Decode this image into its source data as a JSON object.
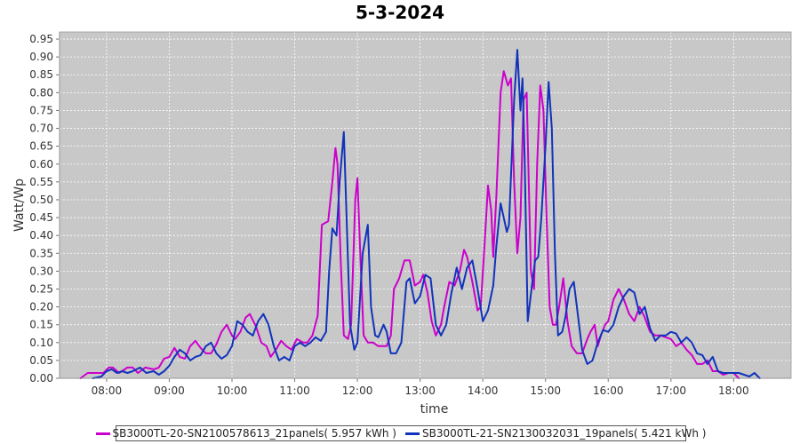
{
  "chart_data": {
    "type": "line",
    "title": "5-3-2024",
    "xlabel": "time",
    "ylabel": "Watt/Wp",
    "x_ticks": [
      "08:00",
      "09:00",
      "10:00",
      "11:00",
      "12:00",
      "13:00",
      "14:00",
      "15:00",
      "16:00",
      "17:00",
      "18:00"
    ],
    "y_ticks": [
      "0.00",
      "0.05",
      "0.10",
      "0.15",
      "0.20",
      "0.25",
      "0.30",
      "0.35",
      "0.40",
      "0.45",
      "0.50",
      "0.55",
      "0.60",
      "0.65",
      "0.70",
      "0.75",
      "0.80",
      "0.85",
      "0.90",
      "0.95"
    ],
    "xlim": [
      "07:15",
      "18:55"
    ],
    "ylim": [
      0,
      0.97
    ],
    "grid": true,
    "legend_position": "bottom",
    "plot_background": "#c8c8c8",
    "series": [
      {
        "name": "SB3000TL-20-SN2100578613_21panels( 5.957 kWh )",
        "color": "#cc00cc",
        "points": [
          [
            "07:35",
            0.0
          ],
          [
            "07:42",
            0.015
          ],
          [
            "07:50",
            0.015
          ],
          [
            "07:57",
            0.015
          ],
          [
            "08:02",
            0.03
          ],
          [
            "08:06",
            0.03
          ],
          [
            "08:12",
            0.015
          ],
          [
            "08:20",
            0.03
          ],
          [
            "08:25",
            0.03
          ],
          [
            "08:30",
            0.015
          ],
          [
            "08:37",
            0.03
          ],
          [
            "08:45",
            0.025
          ],
          [
            "08:50",
            0.03
          ],
          [
            "08:55",
            0.055
          ],
          [
            "09:00",
            0.06
          ],
          [
            "09:05",
            0.085
          ],
          [
            "09:10",
            0.06
          ],
          [
            "09:15",
            0.055
          ],
          [
            "09:20",
            0.09
          ],
          [
            "09:25",
            0.105
          ],
          [
            "09:30",
            0.085
          ],
          [
            "09:35",
            0.07
          ],
          [
            "09:40",
            0.07
          ],
          [
            "09:45",
            0.095
          ],
          [
            "09:50",
            0.13
          ],
          [
            "09:55",
            0.15
          ],
          [
            "10:00",
            0.12
          ],
          [
            "10:03",
            0.11
          ],
          [
            "10:08",
            0.13
          ],
          [
            "10:13",
            0.17
          ],
          [
            "10:17",
            0.18
          ],
          [
            "10:23",
            0.145
          ],
          [
            "10:28",
            0.1
          ],
          [
            "10:33",
            0.09
          ],
          [
            "10:37",
            0.06
          ],
          [
            "10:42",
            0.08
          ],
          [
            "10:47",
            0.105
          ],
          [
            "10:52",
            0.09
          ],
          [
            "10:57",
            0.08
          ],
          [
            "11:02",
            0.11
          ],
          [
            "11:08",
            0.1
          ],
          [
            "11:12",
            0.1
          ],
          [
            "11:17",
            0.12
          ],
          [
            "11:22",
            0.175
          ],
          [
            "11:26",
            0.43
          ],
          [
            "11:32",
            0.44
          ],
          [
            "11:36",
            0.55
          ],
          [
            "11:39",
            0.645
          ],
          [
            "11:41",
            0.6
          ],
          [
            "11:44",
            0.33
          ],
          [
            "11:47",
            0.12
          ],
          [
            "11:51",
            0.11
          ],
          [
            "11:54",
            0.15
          ],
          [
            "11:58",
            0.5
          ],
          [
            "12:00",
            0.56
          ],
          [
            "12:03",
            0.33
          ],
          [
            "12:06",
            0.12
          ],
          [
            "12:10",
            0.1
          ],
          [
            "12:15",
            0.1
          ],
          [
            "12:20",
            0.09
          ],
          [
            "12:28",
            0.09
          ],
          [
            "12:32",
            0.12
          ],
          [
            "12:35",
            0.25
          ],
          [
            "12:40",
            0.28
          ],
          [
            "12:45",
            0.33
          ],
          [
            "12:50",
            0.33
          ],
          [
            "12:55",
            0.26
          ],
          [
            "13:00",
            0.27
          ],
          [
            "13:03",
            0.29
          ],
          [
            "13:07",
            0.24
          ],
          [
            "13:11",
            0.16
          ],
          [
            "13:15",
            0.12
          ],
          [
            "13:20",
            0.15
          ],
          [
            "13:23",
            0.2
          ],
          [
            "13:28",
            0.27
          ],
          [
            "13:33",
            0.26
          ],
          [
            "13:38",
            0.3
          ],
          [
            "13:42",
            0.36
          ],
          [
            "13:45",
            0.34
          ],
          [
            "13:50",
            0.27
          ],
          [
            "13:55",
            0.19
          ],
          [
            "13:58",
            0.2
          ],
          [
            "14:02",
            0.39
          ],
          [
            "14:05",
            0.54
          ],
          [
            "14:08",
            0.47
          ],
          [
            "14:10",
            0.34
          ],
          [
            "14:13",
            0.51
          ],
          [
            "14:17",
            0.8
          ],
          [
            "14:20",
            0.86
          ],
          [
            "14:24",
            0.82
          ],
          [
            "14:27",
            0.84
          ],
          [
            "14:30",
            0.55
          ],
          [
            "14:33",
            0.35
          ],
          [
            "14:36",
            0.45
          ],
          [
            "14:39",
            0.78
          ],
          [
            "14:42",
            0.8
          ],
          [
            "14:46",
            0.3
          ],
          [
            "14:49",
            0.25
          ],
          [
            "14:52",
            0.6
          ],
          [
            "14:55",
            0.82
          ],
          [
            "14:58",
            0.75
          ],
          [
            "15:01",
            0.45
          ],
          [
            "15:04",
            0.2
          ],
          [
            "15:07",
            0.15
          ],
          [
            "15:10",
            0.15
          ],
          [
            "15:13",
            0.2
          ],
          [
            "15:17",
            0.28
          ],
          [
            "15:21",
            0.16
          ],
          [
            "15:25",
            0.09
          ],
          [
            "15:30",
            0.07
          ],
          [
            "15:35",
            0.07
          ],
          [
            "15:40",
            0.11
          ],
          [
            "15:43",
            0.13
          ],
          [
            "15:47",
            0.15
          ],
          [
            "15:50",
            0.09
          ],
          [
            "15:53",
            0.12
          ],
          [
            "15:57",
            0.15
          ],
          [
            "16:00",
            0.16
          ],
          [
            "16:05",
            0.22
          ],
          [
            "16:10",
            0.25
          ],
          [
            "16:15",
            0.22
          ],
          [
            "16:20",
            0.18
          ],
          [
            "16:25",
            0.16
          ],
          [
            "16:30",
            0.2
          ],
          [
            "16:35",
            0.17
          ],
          [
            "16:40",
            0.13
          ],
          [
            "16:45",
            0.12
          ],
          [
            "16:50",
            0.12
          ],
          [
            "16:55",
            0.115
          ],
          [
            "17:00",
            0.11
          ],
          [
            "17:05",
            0.09
          ],
          [
            "17:10",
            0.1
          ],
          [
            "17:15",
            0.08
          ],
          [
            "17:20",
            0.065
          ],
          [
            "17:25",
            0.04
          ],
          [
            "17:30",
            0.04
          ],
          [
            "17:35",
            0.05
          ],
          [
            "17:40",
            0.02
          ],
          [
            "17:45",
            0.02
          ],
          [
            "17:50",
            0.01
          ],
          [
            "17:55",
            0.015
          ],
          [
            "18:00",
            0.015
          ],
          [
            "18:05",
            0.0
          ]
        ]
      },
      {
        "name": "SB3000TL-21-SN2130032031_19panels( 5.421 kWh )",
        "color": "#1133bb",
        "points": [
          [
            "07:47",
            0.0
          ],
          [
            "07:55",
            0.005
          ],
          [
            "08:00",
            0.02
          ],
          [
            "08:05",
            0.025
          ],
          [
            "08:10",
            0.015
          ],
          [
            "08:15",
            0.02
          ],
          [
            "08:20",
            0.015
          ],
          [
            "08:25",
            0.02
          ],
          [
            "08:32",
            0.03
          ],
          [
            "08:38",
            0.015
          ],
          [
            "08:45",
            0.02
          ],
          [
            "08:50",
            0.01
          ],
          [
            "08:55",
            0.02
          ],
          [
            "09:00",
            0.035
          ],
          [
            "09:05",
            0.06
          ],
          [
            "09:10",
            0.08
          ],
          [
            "09:15",
            0.07
          ],
          [
            "09:20",
            0.05
          ],
          [
            "09:25",
            0.06
          ],
          [
            "09:30",
            0.065
          ],
          [
            "09:35",
            0.09
          ],
          [
            "09:40",
            0.1
          ],
          [
            "09:45",
            0.07
          ],
          [
            "09:50",
            0.055
          ],
          [
            "09:55",
            0.065
          ],
          [
            "10:00",
            0.09
          ],
          [
            "10:05",
            0.16
          ],
          [
            "10:10",
            0.15
          ],
          [
            "10:15",
            0.13
          ],
          [
            "10:20",
            0.12
          ],
          [
            "10:25",
            0.16
          ],
          [
            "10:30",
            0.18
          ],
          [
            "10:35",
            0.15
          ],
          [
            "10:40",
            0.09
          ],
          [
            "10:45",
            0.05
          ],
          [
            "10:50",
            0.06
          ],
          [
            "10:55",
            0.05
          ],
          [
            "11:00",
            0.09
          ],
          [
            "11:05",
            0.1
          ],
          [
            "11:10",
            0.09
          ],
          [
            "11:15",
            0.1
          ],
          [
            "11:20",
            0.115
          ],
          [
            "11:25",
            0.105
          ],
          [
            "11:30",
            0.13
          ],
          [
            "11:33",
            0.3
          ],
          [
            "11:36",
            0.42
          ],
          [
            "11:40",
            0.4
          ],
          [
            "11:43",
            0.55
          ],
          [
            "11:47",
            0.69
          ],
          [
            "11:50",
            0.42
          ],
          [
            "11:53",
            0.15
          ],
          [
            "11:57",
            0.08
          ],
          [
            "12:00",
            0.1
          ],
          [
            "12:05",
            0.35
          ],
          [
            "12:10",
            0.43
          ],
          [
            "12:13",
            0.2
          ],
          [
            "12:17",
            0.12
          ],
          [
            "12:20",
            0.115
          ],
          [
            "12:25",
            0.15
          ],
          [
            "12:28",
            0.13
          ],
          [
            "12:32",
            0.07
          ],
          [
            "12:37",
            0.07
          ],
          [
            "12:42",
            0.1
          ],
          [
            "12:47",
            0.27
          ],
          [
            "12:50",
            0.28
          ],
          [
            "12:55",
            0.21
          ],
          [
            "13:00",
            0.23
          ],
          [
            "13:05",
            0.29
          ],
          [
            "13:10",
            0.28
          ],
          [
            "13:15",
            0.15
          ],
          [
            "13:20",
            0.12
          ],
          [
            "13:25",
            0.15
          ],
          [
            "13:30",
            0.24
          ],
          [
            "13:35",
            0.31
          ],
          [
            "13:40",
            0.25
          ],
          [
            "13:45",
            0.31
          ],
          [
            "13:50",
            0.33
          ],
          [
            "13:55",
            0.25
          ],
          [
            "14:00",
            0.16
          ],
          [
            "14:05",
            0.19
          ],
          [
            "14:10",
            0.26
          ],
          [
            "14:13",
            0.37
          ],
          [
            "14:17",
            0.49
          ],
          [
            "14:20",
            0.45
          ],
          [
            "14:23",
            0.41
          ],
          [
            "14:25",
            0.43
          ],
          [
            "14:30",
            0.78
          ],
          [
            "14:33",
            0.92
          ],
          [
            "14:36",
            0.75
          ],
          [
            "14:38",
            0.84
          ],
          [
            "14:40",
            0.62
          ],
          [
            "14:43",
            0.16
          ],
          [
            "14:47",
            0.26
          ],
          [
            "14:50",
            0.33
          ],
          [
            "14:53",
            0.34
          ],
          [
            "14:56",
            0.45
          ],
          [
            "15:00",
            0.65
          ],
          [
            "15:03",
            0.83
          ],
          [
            "15:06",
            0.7
          ],
          [
            "15:09",
            0.35
          ],
          [
            "15:12",
            0.12
          ],
          [
            "15:16",
            0.13
          ],
          [
            "15:19",
            0.17
          ],
          [
            "15:23",
            0.25
          ],
          [
            "15:27",
            0.27
          ],
          [
            "15:30",
            0.2
          ],
          [
            "15:35",
            0.08
          ],
          [
            "15:40",
            0.04
          ],
          [
            "15:45",
            0.05
          ],
          [
            "15:50",
            0.1
          ],
          [
            "15:55",
            0.135
          ],
          [
            "16:00",
            0.13
          ],
          [
            "16:05",
            0.15
          ],
          [
            "16:10",
            0.2
          ],
          [
            "16:15",
            0.23
          ],
          [
            "16:20",
            0.25
          ],
          [
            "16:25",
            0.24
          ],
          [
            "16:30",
            0.18
          ],
          [
            "16:35",
            0.2
          ],
          [
            "16:40",
            0.14
          ],
          [
            "16:45",
            0.105
          ],
          [
            "16:50",
            0.12
          ],
          [
            "16:55",
            0.12
          ],
          [
            "17:00",
            0.13
          ],
          [
            "17:05",
            0.125
          ],
          [
            "17:10",
            0.1
          ],
          [
            "17:15",
            0.115
          ],
          [
            "17:20",
            0.1
          ],
          [
            "17:25",
            0.07
          ],
          [
            "17:30",
            0.065
          ],
          [
            "17:35",
            0.04
          ],
          [
            "17:40",
            0.06
          ],
          [
            "17:45",
            0.02
          ],
          [
            "17:50",
            0.015
          ],
          [
            "17:55",
            0.015
          ],
          [
            "18:00",
            0.015
          ],
          [
            "18:05",
            0.015
          ],
          [
            "18:10",
            0.01
          ],
          [
            "18:15",
            0.005
          ],
          [
            "18:20",
            0.015
          ],
          [
            "18:25",
            0.0
          ]
        ]
      }
    ]
  }
}
